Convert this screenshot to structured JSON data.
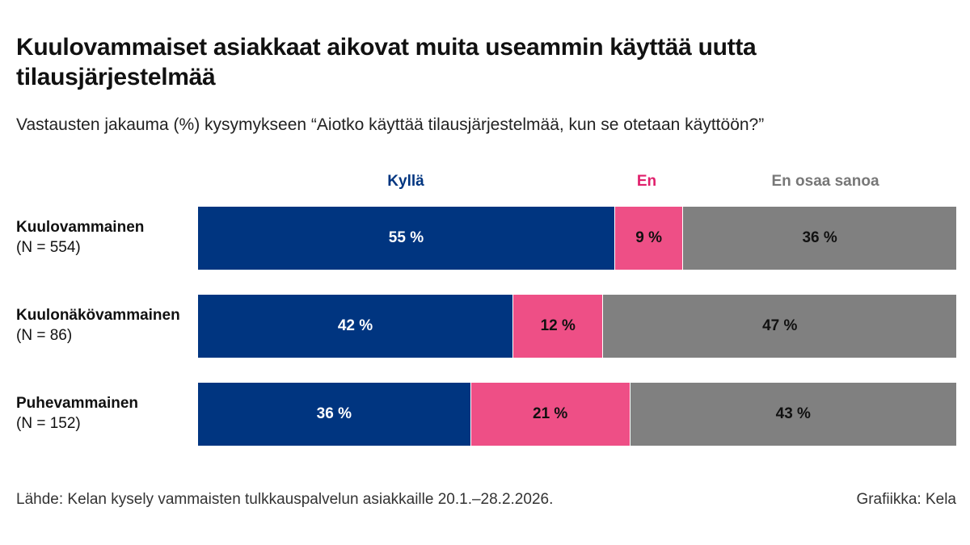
{
  "title": "Kuulovammaiset asiakkaat aikovat muita useammin käyttää uutta tilausjärjestelmää",
  "subtitle": "Vastausten jakauma (%) kysymykseen “Aiotko käyttää tilausjärjestelmää, kun se otetaan käyttöön?”",
  "legend": [
    {
      "label": "Kyllä",
      "color": "#003580"
    },
    {
      "label": "En",
      "color": "#e0206c"
    },
    {
      "label": "En osaa sanoa",
      "color": "#777777"
    }
  ],
  "rows": [
    {
      "name": "Kuulovammainen",
      "n": "(N = 554)",
      "labels": [
        "55 %",
        "9 %",
        "36 %"
      ]
    },
    {
      "name": "Kuulonäkövammainen",
      "n": "(N = 86)",
      "labels": [
        "42 %",
        "12 %",
        "47 %"
      ]
    },
    {
      "name": "Puhevammainen",
      "n": "(N = 152)",
      "labels": [
        "36 %",
        "21 %",
        "43 %"
      ]
    }
  ],
  "chart_data": {
    "type": "bar",
    "orientation": "horizontal",
    "stacked": true,
    "unit": "%",
    "categories": [
      "Kuulovammainen",
      "Kuulonäkövammainen",
      "Puhevammainen"
    ],
    "series": [
      {
        "name": "Kyllä",
        "values": [
          55,
          42,
          36
        ],
        "color": "#003580"
      },
      {
        "name": "En",
        "values": [
          9,
          12,
          21
        ],
        "color": "#ee4f86"
      },
      {
        "name": "En osaa sanoa",
        "values": [
          36,
          47,
          43
        ],
        "color": "#808080"
      }
    ],
    "legend": "top"
  },
  "footer": {
    "source": "Lähde: Kelan kysely vammaisten tulkkauspalvelun asiakkaille 20.1.–28.2.2026.",
    "credit": "Grafiikka: Kela"
  }
}
